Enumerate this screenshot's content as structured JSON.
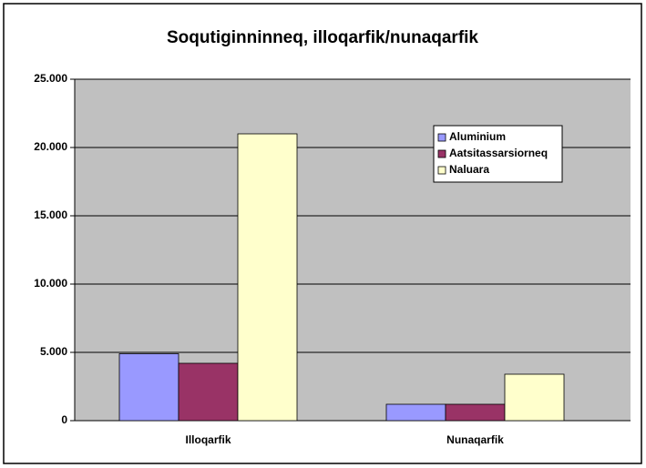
{
  "chart_data": {
    "type": "bar",
    "title": "Soqutiginninneq, illoqarfik/nunaqarfik",
    "categories": [
      "Illoqarfik",
      "Nunaqarfik"
    ],
    "series": [
      {
        "name": "Aluminium",
        "color": "#9999ff",
        "values": [
          4900,
          1200
        ]
      },
      {
        "name": "Aatsitassarsiorneq",
        "color": "#993366",
        "values": [
          4200,
          1200
        ]
      },
      {
        "name": "Naluara",
        "color": "#ffffcc",
        "values": [
          21000,
          3400
        ]
      }
    ],
    "ylim": [
      0,
      25000
    ],
    "yticks": [
      0,
      {
        "value": 5000,
        "label": "5.000"
      },
      {
        "value": 10000,
        "label": "10.000"
      },
      {
        "value": 15000,
        "label": "15.000"
      },
      {
        "value": 20000,
        "label": "20.000"
      },
      {
        "value": 25000,
        "label": "25.000"
      }
    ],
    "grid": true,
    "legend": "top-right",
    "plot_background": "#c0c0c0"
  }
}
